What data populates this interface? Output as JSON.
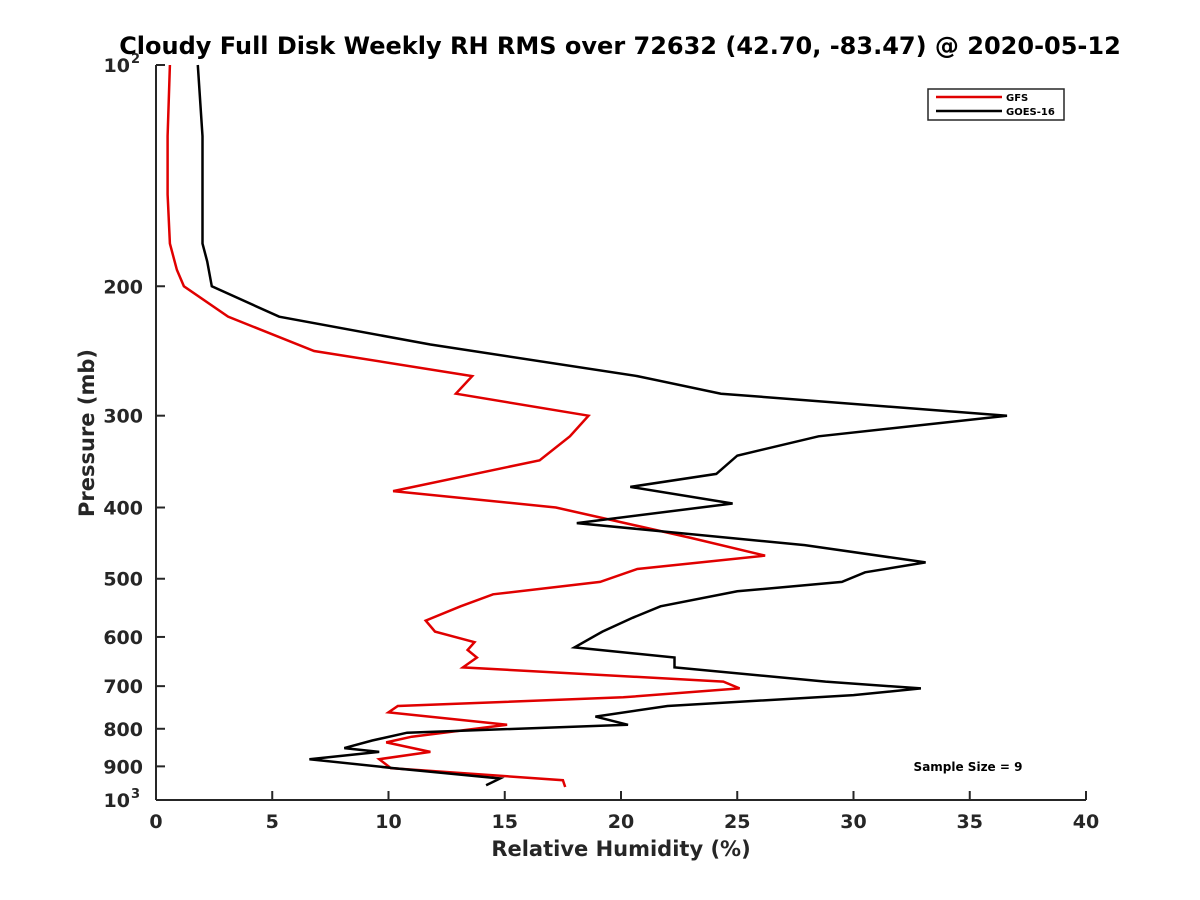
{
  "chart_data": {
    "type": "line",
    "title": "Cloudy Full Disk Weekly RH RMS over 72632 (42.70, -83.47) @ 2020-05-12",
    "xlabel": "Relative Humidity (%)",
    "ylabel": "Pressure (mb)",
    "xlim": [
      0,
      40
    ],
    "ylim": [
      100,
      1000
    ],
    "yscale": "log",
    "y_reversed": true,
    "x_ticks": [
      "0",
      "5",
      "10",
      "15",
      "20",
      "25",
      "30",
      "35",
      "40"
    ],
    "y_ticks": [
      {
        "value": 100,
        "base": "10",
        "exp": "2"
      },
      {
        "value": 200,
        "label": "200"
      },
      {
        "value": 300,
        "label": "300"
      },
      {
        "value": 400,
        "label": "400"
      },
      {
        "value": 500,
        "label": "500"
      },
      {
        "value": 600,
        "label": "600"
      },
      {
        "value": 700,
        "label": "700"
      },
      {
        "value": 800,
        "label": "800"
      },
      {
        "value": 900,
        "label": "900"
      },
      {
        "value": 1000,
        "base": "10",
        "exp": "3"
      }
    ],
    "legend": "top-right",
    "annotation": "Sample Size = 9",
    "series": [
      {
        "name": "GFS",
        "color": "#e00000",
        "points": [
          [
            0.6,
            100
          ],
          [
            0.5,
            125
          ],
          [
            0.5,
            150
          ],
          [
            0.6,
            175
          ],
          [
            0.9,
            190
          ],
          [
            1.2,
            200
          ],
          [
            3.1,
            220
          ],
          [
            6.8,
            245
          ],
          [
            13.6,
            265
          ],
          [
            12.9,
            280
          ],
          [
            18.6,
            300
          ],
          [
            17.8,
            320
          ],
          [
            16.5,
            345
          ],
          [
            10.2,
            380
          ],
          [
            17.2,
            400
          ],
          [
            23.0,
            440
          ],
          [
            26.2,
            465
          ],
          [
            20.7,
            485
          ],
          [
            19.1,
            505
          ],
          [
            14.5,
            525
          ],
          [
            13.1,
            545
          ],
          [
            11.6,
            570
          ],
          [
            12.0,
            590
          ],
          [
            13.7,
            610
          ],
          [
            13.4,
            625
          ],
          [
            13.8,
            640
          ],
          [
            13.2,
            660
          ],
          [
            24.4,
            690
          ],
          [
            25.1,
            705
          ],
          [
            20.1,
            725
          ],
          [
            10.4,
            745
          ],
          [
            10.0,
            760
          ],
          [
            15.1,
            790
          ],
          [
            11.0,
            820
          ],
          [
            9.9,
            835
          ],
          [
            11.8,
            860
          ],
          [
            9.6,
            880
          ],
          [
            10.1,
            905
          ],
          [
            17.5,
            940
          ],
          [
            17.6,
            960
          ]
        ]
      },
      {
        "name": "GOES-16",
        "color": "#000000",
        "points": [
          [
            1.8,
            100
          ],
          [
            2.0,
            125
          ],
          [
            2.0,
            150
          ],
          [
            2.0,
            175
          ],
          [
            2.2,
            185
          ],
          [
            2.4,
            200
          ],
          [
            5.3,
            220
          ],
          [
            11.8,
            240
          ],
          [
            20.7,
            265
          ],
          [
            24.3,
            280
          ],
          [
            36.6,
            300
          ],
          [
            28.5,
            320
          ],
          [
            25.0,
            340
          ],
          [
            24.1,
            360
          ],
          [
            20.4,
            375
          ],
          [
            24.8,
            395
          ],
          [
            18.1,
            420
          ],
          [
            27.9,
            450
          ],
          [
            33.1,
            475
          ],
          [
            30.5,
            490
          ],
          [
            29.5,
            505
          ],
          [
            25.0,
            520
          ],
          [
            21.7,
            545
          ],
          [
            20.5,
            565
          ],
          [
            19.2,
            590
          ],
          [
            18.0,
            620
          ],
          [
            22.3,
            640
          ],
          [
            22.3,
            660
          ],
          [
            28.8,
            690
          ],
          [
            32.9,
            705
          ],
          [
            30.0,
            720
          ],
          [
            22.0,
            745
          ],
          [
            18.9,
            770
          ],
          [
            20.3,
            790
          ],
          [
            10.8,
            810
          ],
          [
            9.3,
            830
          ],
          [
            8.1,
            850
          ],
          [
            9.6,
            860
          ],
          [
            6.6,
            880
          ],
          [
            10.2,
            905
          ],
          [
            14.8,
            935
          ],
          [
            14.2,
            955
          ]
        ]
      }
    ]
  }
}
